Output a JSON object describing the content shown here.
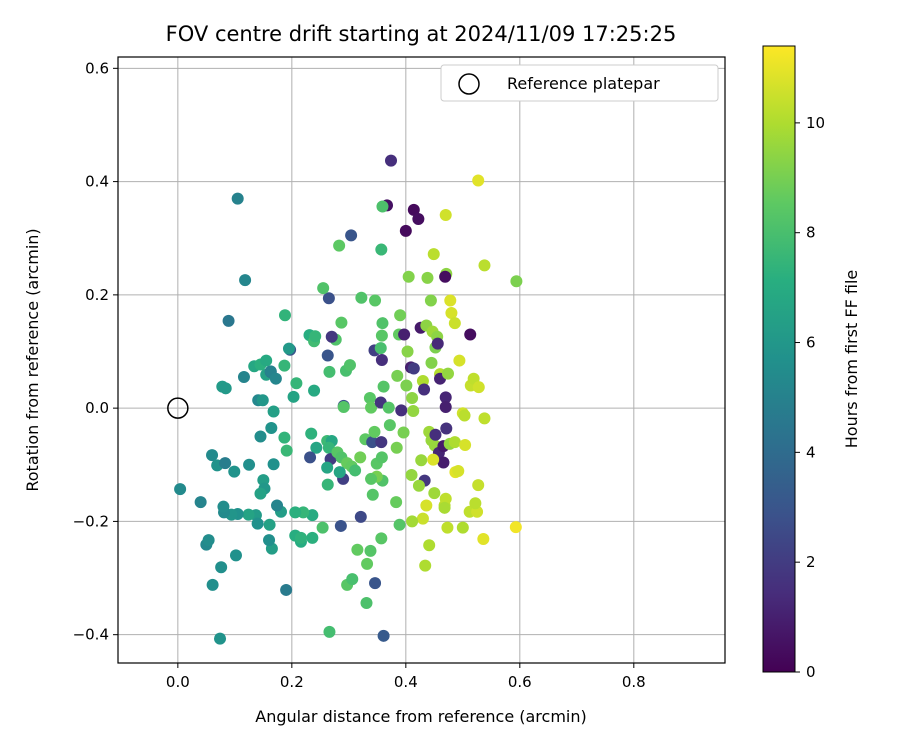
{
  "chart_data": {
    "type": "scatter",
    "title": "FOV centre drift starting at 2024/11/09 17:25:25",
    "xlabel": "Angular distance from reference (arcmin)",
    "ylabel": "Rotation from reference (arcmin)",
    "xlim": [
      -0.105,
      0.96
    ],
    "ylim": [
      -0.45,
      0.62
    ],
    "xticks": [
      0.0,
      0.2,
      0.4,
      0.6,
      0.8
    ],
    "xtick_labels": [
      "0.0",
      "0.2",
      "0.4",
      "0.6",
      "0.8"
    ],
    "yticks": [
      -0.4,
      -0.2,
      0.0,
      0.2,
      0.4,
      0.6
    ],
    "ytick_labels": [
      "−0.4",
      "−0.2",
      "0.0",
      "0.2",
      "0.4",
      "0.6"
    ],
    "grid": true,
    "legend": {
      "placement": "top-right",
      "entries": [
        {
          "label": "Reference platepar",
          "marker": "open-circle"
        }
      ]
    },
    "reference_point": {
      "x": 0.0,
      "y": 0.0
    },
    "colorbar": {
      "label": "Hours from first FF file",
      "colormap": "viridis",
      "range": [
        0,
        11.4
      ],
      "ticks": [
        0,
        2,
        4,
        6,
        8,
        10
      ],
      "tick_labels": [
        "0",
        "2",
        "4",
        "6",
        "8",
        "10"
      ]
    },
    "points": [
      {
        "x": 0.374,
        "y": 0.437,
        "c": 1.5
      },
      {
        "x": 0.105,
        "y": 0.37,
        "c": 5.0
      },
      {
        "x": 0.367,
        "y": 0.358,
        "c": 0.5
      },
      {
        "x": 0.414,
        "y": 0.35,
        "c": 0.3
      },
      {
        "x": 0.422,
        "y": 0.334,
        "c": 0.4
      },
      {
        "x": 0.4,
        "y": 0.313,
        "c": 0.3
      },
      {
        "x": 0.304,
        "y": 0.305,
        "c": 3.0
      },
      {
        "x": 0.118,
        "y": 0.226,
        "c": 5.2
      },
      {
        "x": 0.089,
        "y": 0.154,
        "c": 4.5
      },
      {
        "x": 0.265,
        "y": 0.194,
        "c": 2.8
      },
      {
        "x": 0.255,
        "y": 0.212,
        "c": 8.2
      },
      {
        "x": 0.283,
        "y": 0.287,
        "c": 8.5
      },
      {
        "x": 0.357,
        "y": 0.28,
        "c": 7.6
      },
      {
        "x": 0.359,
        "y": 0.356,
        "c": 8.1
      },
      {
        "x": 0.405,
        "y": 0.232,
        "c": 9.2
      },
      {
        "x": 0.438,
        "y": 0.23,
        "c": 9.3
      },
      {
        "x": 0.471,
        "y": 0.237,
        "c": 9.4
      },
      {
        "x": 0.449,
        "y": 0.272,
        "c": 10.2
      },
      {
        "x": 0.47,
        "y": 0.341,
        "c": 10.6
      },
      {
        "x": 0.527,
        "y": 0.402,
        "c": 10.9
      },
      {
        "x": 0.538,
        "y": 0.252,
        "c": 10.2
      },
      {
        "x": 0.594,
        "y": 0.224,
        "c": 9.1
      },
      {
        "x": 0.469,
        "y": 0.232,
        "c": 0.4
      },
      {
        "x": 0.188,
        "y": 0.164,
        "c": 7.4
      },
      {
        "x": 0.197,
        "y": 0.103,
        "c": 3.0
      },
      {
        "x": 0.195,
        "y": 0.105,
        "c": 6.1
      },
      {
        "x": 0.231,
        "y": 0.129,
        "c": 7.1
      },
      {
        "x": 0.239,
        "y": 0.118,
        "c": 7.8
      },
      {
        "x": 0.241,
        "y": 0.127,
        "c": 7.5
      },
      {
        "x": 0.277,
        "y": 0.121,
        "c": 8.2
      },
      {
        "x": 0.27,
        "y": 0.126,
        "c": 1.8
      },
      {
        "x": 0.287,
        "y": 0.151,
        "c": 8.4
      },
      {
        "x": 0.322,
        "y": 0.195,
        "c": 8.2
      },
      {
        "x": 0.346,
        "y": 0.19,
        "c": 8.4
      },
      {
        "x": 0.359,
        "y": 0.15,
        "c": 8.2
      },
      {
        "x": 0.358,
        "y": 0.128,
        "c": 8.4
      },
      {
        "x": 0.388,
        "y": 0.13,
        "c": 8.6
      },
      {
        "x": 0.39,
        "y": 0.164,
        "c": 8.9
      },
      {
        "x": 0.397,
        "y": 0.13,
        "c": 1.0
      },
      {
        "x": 0.426,
        "y": 0.142,
        "c": 0.8
      },
      {
        "x": 0.436,
        "y": 0.146,
        "c": 9.4
      },
      {
        "x": 0.444,
        "y": 0.19,
        "c": 9.2
      },
      {
        "x": 0.447,
        "y": 0.135,
        "c": 9.7
      },
      {
        "x": 0.478,
        "y": 0.19,
        "c": 10.8
      },
      {
        "x": 0.48,
        "y": 0.168,
        "c": 10.7
      },
      {
        "x": 0.486,
        "y": 0.15,
        "c": 10.5
      },
      {
        "x": 0.513,
        "y": 0.13,
        "c": 0.4
      },
      {
        "x": 0.134,
        "y": 0.074,
        "c": 6.8
      },
      {
        "x": 0.145,
        "y": 0.077,
        "c": 7.2
      },
      {
        "x": 0.155,
        "y": 0.084,
        "c": 6.9
      },
      {
        "x": 0.155,
        "y": 0.059,
        "c": 6.5
      },
      {
        "x": 0.163,
        "y": 0.064,
        "c": 3.5
      },
      {
        "x": 0.163,
        "y": 0.065,
        "c": 5.0
      },
      {
        "x": 0.172,
        "y": 0.052,
        "c": 5.2
      },
      {
        "x": 0.187,
        "y": 0.075,
        "c": 7.5
      },
      {
        "x": 0.116,
        "y": 0.055,
        "c": 5.1
      },
      {
        "x": 0.078,
        "y": 0.038,
        "c": 6.2
      },
      {
        "x": 0.084,
        "y": 0.035,
        "c": 6.1
      },
      {
        "x": 0.141,
        "y": 0.014,
        "c": 5.3
      },
      {
        "x": 0.149,
        "y": 0.014,
        "c": 6.0
      },
      {
        "x": 0.168,
        "y": -0.006,
        "c": 6.4
      },
      {
        "x": 0.208,
        "y": 0.044,
        "c": 7.5
      },
      {
        "x": 0.203,
        "y": 0.02,
        "c": 6.6
      },
      {
        "x": 0.239,
        "y": 0.031,
        "c": 6.9
      },
      {
        "x": 0.263,
        "y": 0.093,
        "c": 3.0
      },
      {
        "x": 0.266,
        "y": 0.064,
        "c": 7.9
      },
      {
        "x": 0.295,
        "y": 0.066,
        "c": 8.0
      },
      {
        "x": 0.302,
        "y": 0.076,
        "c": 8.2
      },
      {
        "x": 0.291,
        "y": 0.004,
        "c": 2.8
      },
      {
        "x": 0.291,
        "y": 0.002,
        "c": 8.3
      },
      {
        "x": 0.337,
        "y": 0.018,
        "c": 8.4
      },
      {
        "x": 0.339,
        "y": 0.001,
        "c": 8.6
      },
      {
        "x": 0.345,
        "y": 0.102,
        "c": 2.1
      },
      {
        "x": 0.356,
        "y": 0.106,
        "c": 8.0
      },
      {
        "x": 0.358,
        "y": 0.085,
        "c": 1.5
      },
      {
        "x": 0.361,
        "y": 0.038,
        "c": 8.3
      },
      {
        "x": 0.356,
        "y": 0.01,
        "c": 1.7
      },
      {
        "x": 0.37,
        "y": 0.001,
        "c": 8.3
      },
      {
        "x": 0.372,
        "y": -0.03,
        "c": 8.4
      },
      {
        "x": 0.385,
        "y": 0.057,
        "c": 9.0
      },
      {
        "x": 0.392,
        "y": -0.004,
        "c": 1.5
      },
      {
        "x": 0.401,
        "y": 0.04,
        "c": 9.1
      },
      {
        "x": 0.403,
        "y": 0.1,
        "c": 9.3
      },
      {
        "x": 0.409,
        "y": 0.072,
        "c": 1.0
      },
      {
        "x": 0.414,
        "y": 0.07,
        "c": 2.0
      },
      {
        "x": 0.411,
        "y": 0.018,
        "c": 9.4
      },
      {
        "x": 0.413,
        "y": -0.005,
        "c": 9.5
      },
      {
        "x": 0.43,
        "y": 0.048,
        "c": 10.0
      },
      {
        "x": 0.432,
        "y": 0.033,
        "c": 1.5
      },
      {
        "x": 0.445,
        "y": 0.08,
        "c": 9.2
      },
      {
        "x": 0.452,
        "y": 0.107,
        "c": 9.1
      },
      {
        "x": 0.455,
        "y": 0.126,
        "c": 9.4
      },
      {
        "x": 0.456,
        "y": 0.114,
        "c": 1.3
      },
      {
        "x": 0.46,
        "y": 0.06,
        "c": 10.1
      },
      {
        "x": 0.46,
        "y": 0.052,
        "c": 1.1
      },
      {
        "x": 0.47,
        "y": 0.019,
        "c": 1.2
      },
      {
        "x": 0.47,
        "y": 0.002,
        "c": 1.0
      },
      {
        "x": 0.474,
        "y": 0.061,
        "c": 9.5
      },
      {
        "x": 0.494,
        "y": 0.084,
        "c": 10.7
      },
      {
        "x": 0.5,
        "y": -0.009,
        "c": 10.6
      },
      {
        "x": 0.514,
        "y": 0.04,
        "c": 10.4
      },
      {
        "x": 0.519,
        "y": 0.052,
        "c": 10.3
      },
      {
        "x": 0.528,
        "y": 0.037,
        "c": 10.6
      },
      {
        "x": 0.538,
        "y": -0.018,
        "c": 10.3
      },
      {
        "x": 0.503,
        "y": -0.013,
        "c": 10.2
      },
      {
        "x": 0.187,
        "y": -0.052,
        "c": 7.4
      },
      {
        "x": 0.191,
        "y": -0.075,
        "c": 7.6
      },
      {
        "x": 0.145,
        "y": -0.05,
        "c": 5.5
      },
      {
        "x": 0.164,
        "y": -0.035,
        "c": 5.8
      },
      {
        "x": 0.234,
        "y": -0.045,
        "c": 7.3
      },
      {
        "x": 0.243,
        "y": -0.07,
        "c": 6.7
      },
      {
        "x": 0.232,
        "y": -0.087,
        "c": 2.8
      },
      {
        "x": 0.262,
        "y": -0.058,
        "c": 7.7
      },
      {
        "x": 0.27,
        "y": -0.058,
        "c": 6.8
      },
      {
        "x": 0.265,
        "y": -0.07,
        "c": 7.5
      },
      {
        "x": 0.268,
        "y": -0.09,
        "c": 2.0
      },
      {
        "x": 0.28,
        "y": -0.078,
        "c": 8.4
      },
      {
        "x": 0.287,
        "y": -0.087,
        "c": 8.2
      },
      {
        "x": 0.297,
        "y": -0.097,
        "c": 8.7
      },
      {
        "x": 0.305,
        "y": -0.103,
        "c": 8.6
      },
      {
        "x": 0.32,
        "y": -0.087,
        "c": 8.9
      },
      {
        "x": 0.329,
        "y": -0.055,
        "c": 8.5
      },
      {
        "x": 0.341,
        "y": -0.06,
        "c": 2.8
      },
      {
        "x": 0.345,
        "y": -0.042,
        "c": 8.6
      },
      {
        "x": 0.349,
        "y": -0.098,
        "c": 8.4
      },
      {
        "x": 0.357,
        "y": -0.06,
        "c": 1.8
      },
      {
        "x": 0.358,
        "y": -0.087,
        "c": 8.3
      },
      {
        "x": 0.384,
        "y": -0.07,
        "c": 9.0
      },
      {
        "x": 0.396,
        "y": -0.043,
        "c": 9.0
      },
      {
        "x": 0.41,
        "y": -0.118,
        "c": 9.5
      },
      {
        "x": 0.427,
        "y": -0.092,
        "c": 9.6
      },
      {
        "x": 0.441,
        "y": -0.042,
        "c": 9.7
      },
      {
        "x": 0.445,
        "y": -0.057,
        "c": 9.6
      },
      {
        "x": 0.451,
        "y": -0.066,
        "c": 9.6
      },
      {
        "x": 0.452,
        "y": -0.047,
        "c": 1.5
      },
      {
        "x": 0.458,
        "y": -0.079,
        "c": 1.2
      },
      {
        "x": 0.466,
        "y": -0.096,
        "c": 0.9
      },
      {
        "x": 0.466,
        "y": -0.067,
        "c": 0.8
      },
      {
        "x": 0.477,
        "y": -0.063,
        "c": 9.5
      },
      {
        "x": 0.486,
        "y": -0.06,
        "c": 10.0
      },
      {
        "x": 0.487,
        "y": -0.113,
        "c": 10.9
      },
      {
        "x": 0.492,
        "y": -0.111,
        "c": 10.7
      },
      {
        "x": 0.504,
        "y": -0.065,
        "c": 10.7
      },
      {
        "x": 0.471,
        "y": -0.036,
        "c": 1.6
      },
      {
        "x": 0.448,
        "y": -0.091,
        "c": 10.8
      },
      {
        "x": 0.433,
        "y": -0.128,
        "c": 1.8
      },
      {
        "x": 0.423,
        "y": -0.137,
        "c": 9.6
      },
      {
        "x": 0.45,
        "y": -0.15,
        "c": 9.7
      },
      {
        "x": 0.468,
        "y": -0.172,
        "c": 10.2
      },
      {
        "x": 0.47,
        "y": -0.16,
        "c": 10.3
      },
      {
        "x": 0.468,
        "y": -0.176,
        "c": 9.9
      },
      {
        "x": 0.436,
        "y": -0.172,
        "c": 10.7
      },
      {
        "x": 0.43,
        "y": -0.195,
        "c": 10.5
      },
      {
        "x": 0.411,
        "y": -0.2,
        "c": 9.8
      },
      {
        "x": 0.389,
        "y": -0.206,
        "c": 8.3
      },
      {
        "x": 0.383,
        "y": -0.166,
        "c": 8.7
      },
      {
        "x": 0.359,
        "y": -0.128,
        "c": 8.2
      },
      {
        "x": 0.349,
        "y": -0.121,
        "c": 9.0
      },
      {
        "x": 0.342,
        "y": -0.153,
        "c": 8.3
      },
      {
        "x": 0.339,
        "y": -0.125,
        "c": 8.4
      },
      {
        "x": 0.321,
        "y": -0.192,
        "c": 2.5
      },
      {
        "x": 0.311,
        "y": -0.11,
        "c": 7.9
      },
      {
        "x": 0.286,
        "y": -0.208,
        "c": 2.9
      },
      {
        "x": 0.29,
        "y": -0.125,
        "c": 2.1
      },
      {
        "x": 0.284,
        "y": -0.113,
        "c": 6.7
      },
      {
        "x": 0.263,
        "y": -0.135,
        "c": 7.5
      },
      {
        "x": 0.262,
        "y": -0.105,
        "c": 6.7
      },
      {
        "x": 0.254,
        "y": -0.211,
        "c": 8.1
      },
      {
        "x": 0.236,
        "y": -0.189,
        "c": 7.0
      },
      {
        "x": 0.216,
        "y": -0.236,
        "c": 7.0
      },
      {
        "x": 0.22,
        "y": -0.184,
        "c": 7.5
      },
      {
        "x": 0.206,
        "y": -0.225,
        "c": 7.1
      },
      {
        "x": 0.206,
        "y": -0.184,
        "c": 7.2
      },
      {
        "x": 0.181,
        "y": -0.183,
        "c": 6.3
      },
      {
        "x": 0.165,
        "y": -0.248,
        "c": 6.3
      },
      {
        "x": 0.16,
        "y": -0.233,
        "c": 5.6
      },
      {
        "x": 0.161,
        "y": -0.206,
        "c": 6.5
      },
      {
        "x": 0.137,
        "y": -0.189,
        "c": 6.2
      },
      {
        "x": 0.15,
        "y": -0.127,
        "c": 6.3
      },
      {
        "x": 0.152,
        "y": -0.142,
        "c": 6.0
      },
      {
        "x": 0.145,
        "y": -0.151,
        "c": 6.5
      },
      {
        "x": 0.168,
        "y": -0.099,
        "c": 5.7
      },
      {
        "x": 0.174,
        "y": -0.172,
        "c": 5.1
      },
      {
        "x": 0.125,
        "y": -0.1,
        "c": 5.6
      },
      {
        "x": 0.124,
        "y": -0.188,
        "c": 6.6
      },
      {
        "x": 0.105,
        "y": -0.187,
        "c": 5.7
      },
      {
        "x": 0.099,
        "y": -0.112,
        "c": 5.8
      },
      {
        "x": 0.094,
        "y": -0.188,
        "c": 5.9
      },
      {
        "x": 0.081,
        "y": -0.184,
        "c": 5.4
      },
      {
        "x": 0.08,
        "y": -0.174,
        "c": 5.5
      },
      {
        "x": 0.06,
        "y": -0.083,
        "c": 5.4
      },
      {
        "x": 0.069,
        "y": -0.101,
        "c": 5.8
      },
      {
        "x": 0.083,
        "y": -0.097,
        "c": 4.8
      },
      {
        "x": 0.04,
        "y": -0.166,
        "c": 5.1
      },
      {
        "x": 0.004,
        "y": -0.143,
        "c": 5.4
      },
      {
        "x": 0.05,
        "y": -0.241,
        "c": 5.3
      },
      {
        "x": 0.054,
        "y": -0.233,
        "c": 5.5
      },
      {
        "x": 0.076,
        "y": -0.281,
        "c": 5.6
      },
      {
        "x": 0.102,
        "y": -0.26,
        "c": 5.7
      },
      {
        "x": 0.061,
        "y": -0.312,
        "c": 5.6
      },
      {
        "x": 0.19,
        "y": -0.321,
        "c": 4.7
      },
      {
        "x": 0.074,
        "y": -0.407,
        "c": 5.8
      },
      {
        "x": 0.14,
        "y": -0.204,
        "c": 5.7
      },
      {
        "x": 0.236,
        "y": -0.229,
        "c": 7.2
      },
      {
        "x": 0.216,
        "y": -0.229,
        "c": 7.3
      },
      {
        "x": 0.266,
        "y": -0.395,
        "c": 7.9
      },
      {
        "x": 0.297,
        "y": -0.312,
        "c": 8.4
      },
      {
        "x": 0.306,
        "y": -0.302,
        "c": 8.0
      },
      {
        "x": 0.315,
        "y": -0.25,
        "c": 8.6
      },
      {
        "x": 0.332,
        "y": -0.275,
        "c": 8.6
      },
      {
        "x": 0.331,
        "y": -0.344,
        "c": 8.1
      },
      {
        "x": 0.346,
        "y": -0.309,
        "c": 3.0
      },
      {
        "x": 0.338,
        "y": -0.252,
        "c": 8.3
      },
      {
        "x": 0.357,
        "y": -0.23,
        "c": 8.4
      },
      {
        "x": 0.361,
        "y": -0.402,
        "c": 3.2
      },
      {
        "x": 0.434,
        "y": -0.278,
        "c": 10.0
      },
      {
        "x": 0.441,
        "y": -0.242,
        "c": 10.0
      },
      {
        "x": 0.473,
        "y": -0.211,
        "c": 10.3
      },
      {
        "x": 0.512,
        "y": -0.183,
        "c": 10.3
      },
      {
        "x": 0.525,
        "y": -0.183,
        "c": 10.6
      },
      {
        "x": 0.522,
        "y": -0.168,
        "c": 10.2
      },
      {
        "x": 0.527,
        "y": -0.136,
        "c": 10.4
      },
      {
        "x": 0.536,
        "y": -0.231,
        "c": 10.9
      },
      {
        "x": 0.593,
        "y": -0.21,
        "c": 11.2
      },
      {
        "x": 0.5,
        "y": -0.211,
        "c": 10.0
      }
    ]
  }
}
